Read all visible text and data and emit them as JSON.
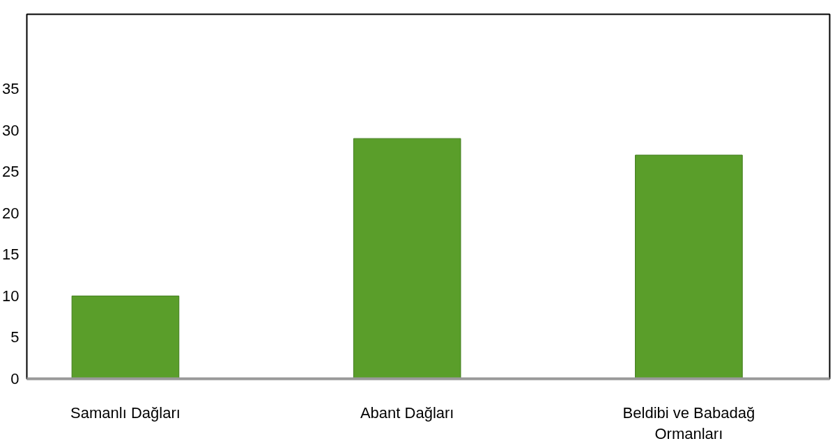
{
  "chart_data": {
    "type": "bar",
    "categories": [
      "Samanlı Dağları",
      "Abant Dağları",
      "Beldibi ve Babadağ Ormanları"
    ],
    "values": [
      10,
      29,
      27
    ],
    "color": "#5a9e2a",
    "ylim": [
      0,
      44
    ],
    "yticks": [
      0,
      5,
      10,
      15,
      20,
      25,
      30,
      35
    ],
    "grid": false
  }
}
